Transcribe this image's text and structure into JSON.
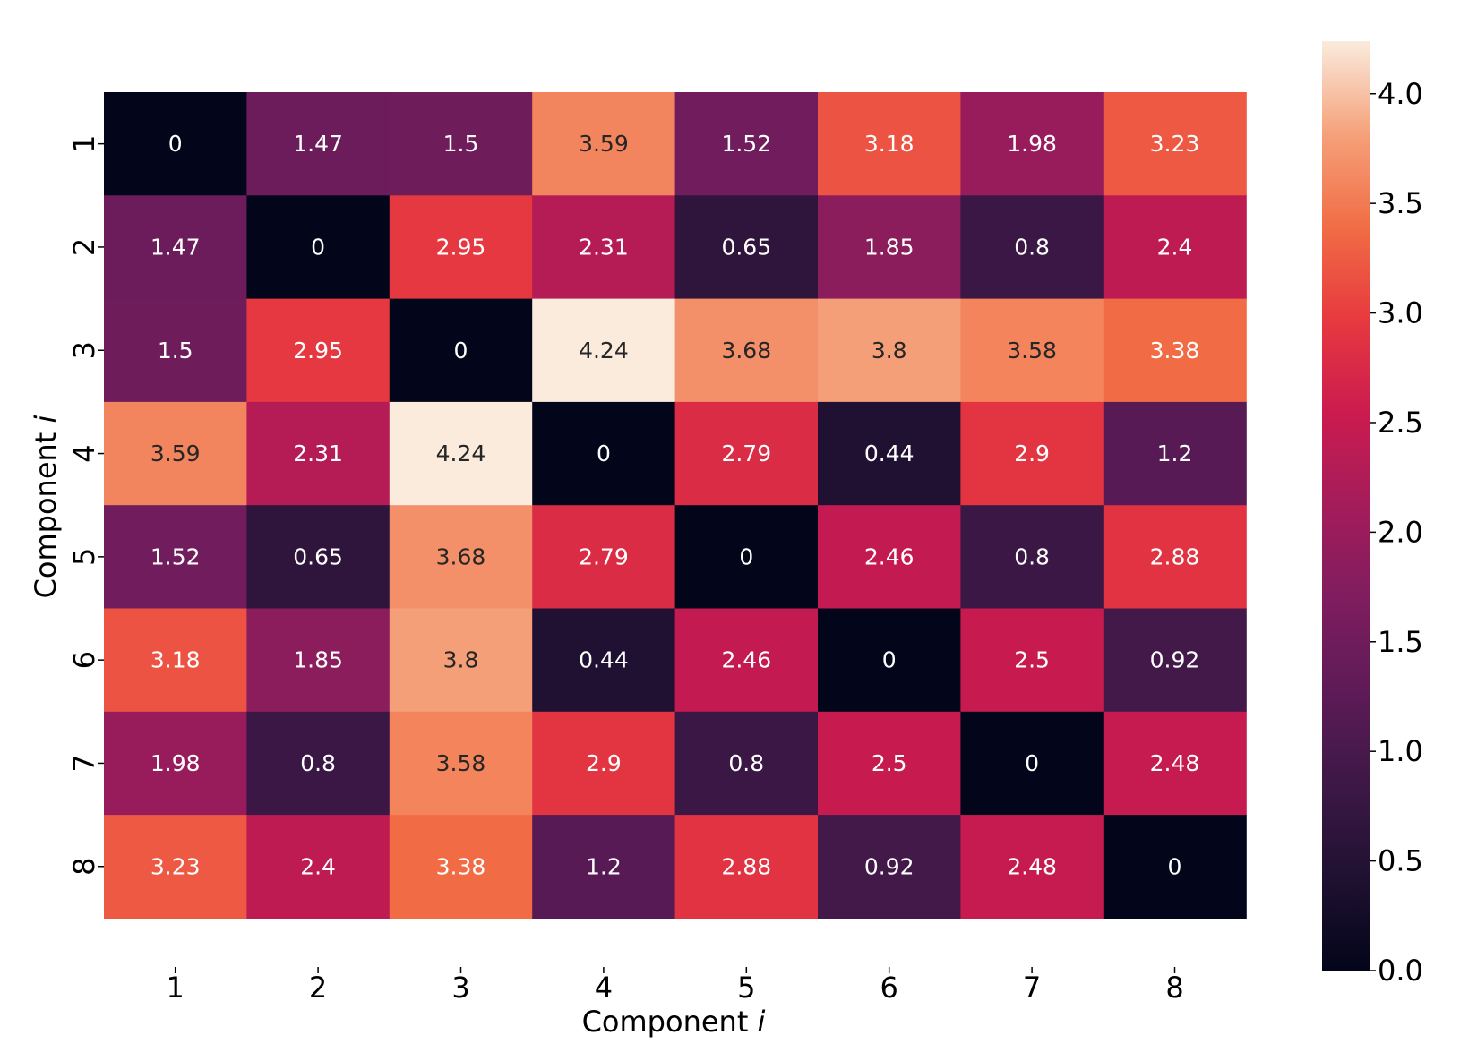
{
  "chart_data": {
    "type": "heatmap",
    "title": "",
    "xlabel": "Component",
    "ylabel": "Component",
    "xlabel_var": "i",
    "ylabel_var": "i",
    "x_categories": [
      "1",
      "2",
      "3",
      "4",
      "5",
      "6",
      "7",
      "8"
    ],
    "y_categories": [
      "1",
      "2",
      "3",
      "4",
      "5",
      "6",
      "7",
      "8"
    ],
    "values": [
      [
        0,
        1.47,
        1.5,
        3.59,
        1.52,
        3.18,
        1.98,
        3.23
      ],
      [
        1.47,
        0,
        2.95,
        2.31,
        0.65,
        1.85,
        0.8,
        2.4
      ],
      [
        1.5,
        2.95,
        0,
        4.24,
        3.68,
        3.8,
        3.58,
        3.38
      ],
      [
        3.59,
        2.31,
        4.24,
        0,
        2.79,
        0.44,
        2.9,
        1.2
      ],
      [
        1.52,
        0.65,
        3.68,
        2.79,
        0,
        2.46,
        0.8,
        2.88
      ],
      [
        3.18,
        1.85,
        3.8,
        0.44,
        2.46,
        0,
        2.5,
        0.92
      ],
      [
        1.98,
        0.8,
        3.58,
        2.9,
        0.8,
        2.5,
        0,
        2.48
      ],
      [
        3.23,
        2.4,
        3.38,
        1.2,
        2.88,
        0.92,
        2.48,
        0
      ]
    ],
    "colorbar": {
      "min": 0,
      "max": 4.24,
      "ticks": [
        0.0,
        0.5,
        1.0,
        1.5,
        2.0,
        2.5,
        3.0,
        3.5,
        4.0
      ],
      "tick_labels": [
        "0.0",
        "0.5",
        "1.0",
        "1.5",
        "2.0",
        "2.5",
        "3.0",
        "3.5",
        "4.0"
      ],
      "colormap": "rocket"
    },
    "annotated": true
  }
}
